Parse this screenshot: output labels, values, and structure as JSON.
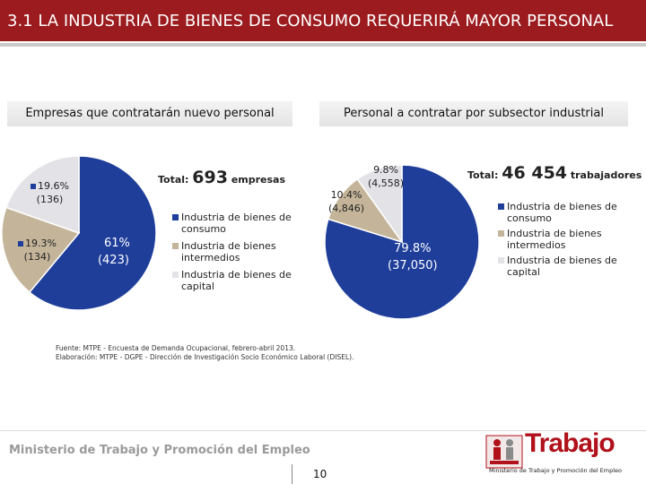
{
  "header": {
    "title": "3.1 LA INDUSTRIA DE BIENES DE CONSUMO REQUERIRÁ MAYOR PERSONAL"
  },
  "left_panel": {
    "header": "Empresas que contratarán nuevo personal",
    "total_label": "Total:",
    "total_value": "693",
    "total_unit": "empresas",
    "slice_labels": [
      {
        "pct": "61%",
        "count": "(423)"
      },
      {
        "pct": "19.3%",
        "count": "(134)"
      },
      {
        "pct": "19.6%",
        "count": "(136)"
      }
    ]
  },
  "right_panel": {
    "header": "Personal a contratar por subsector industrial",
    "total_label": "Total:",
    "total_value": "46 454",
    "total_unit": "trabajadores",
    "slice_labels": [
      {
        "pct": "79.8%",
        "count": "(37,050)"
      },
      {
        "pct": "10.4%",
        "count": "(4,846)"
      },
      {
        "pct": "9.8%",
        "count": "(4,558)"
      }
    ]
  },
  "legend": {
    "items": [
      {
        "label": "Industria de bienes de consumo",
        "color": "#1f3e9a"
      },
      {
        "label": "Industria de bienes intermedios",
        "color": "#c4b59a"
      },
      {
        "label": "Industria de bienes de capital",
        "color": "#e3e3e7"
      }
    ]
  },
  "chart_data": [
    {
      "type": "pie",
      "title": "Empresas que contratarán nuevo personal",
      "categories": [
        "Industria de bienes de consumo",
        "Industria de bienes intermedios",
        "Industria de bienes de capital"
      ],
      "values": [
        61,
        19.3,
        19.6
      ],
      "counts": [
        423,
        134,
        136
      ],
      "colors": [
        "#1f3e9a",
        "#c4b59a",
        "#e3e3e7"
      ],
      "total": 693
    },
    {
      "type": "pie",
      "title": "Personal a contratar por subsector industrial",
      "categories": [
        "Industria de bienes de consumo",
        "Industria de bienes intermedios",
        "Industria de bienes de capital"
      ],
      "values": [
        79.8,
        10.4,
        9.8
      ],
      "counts": [
        37050,
        4846,
        4558
      ],
      "colors": [
        "#1f3e9a",
        "#c4b59a",
        "#e3e3e7"
      ],
      "total": 46454
    }
  ],
  "source": {
    "line1": "Fuente: MTPE - Encuesta de Demanda Ocupacional, febrero-abril 2013.",
    "line2": "Elaboración: MTPE - DGPE - Dirección de Investigación Socio Económico Laboral (DISEL)."
  },
  "footer": {
    "ministry": "Ministerio de Trabajo y Promoción del Empleo",
    "page": "10",
    "logo_word": "Trabajo",
    "logo_sub": "Ministerio de Trabajo y Promoción del Empleo"
  }
}
